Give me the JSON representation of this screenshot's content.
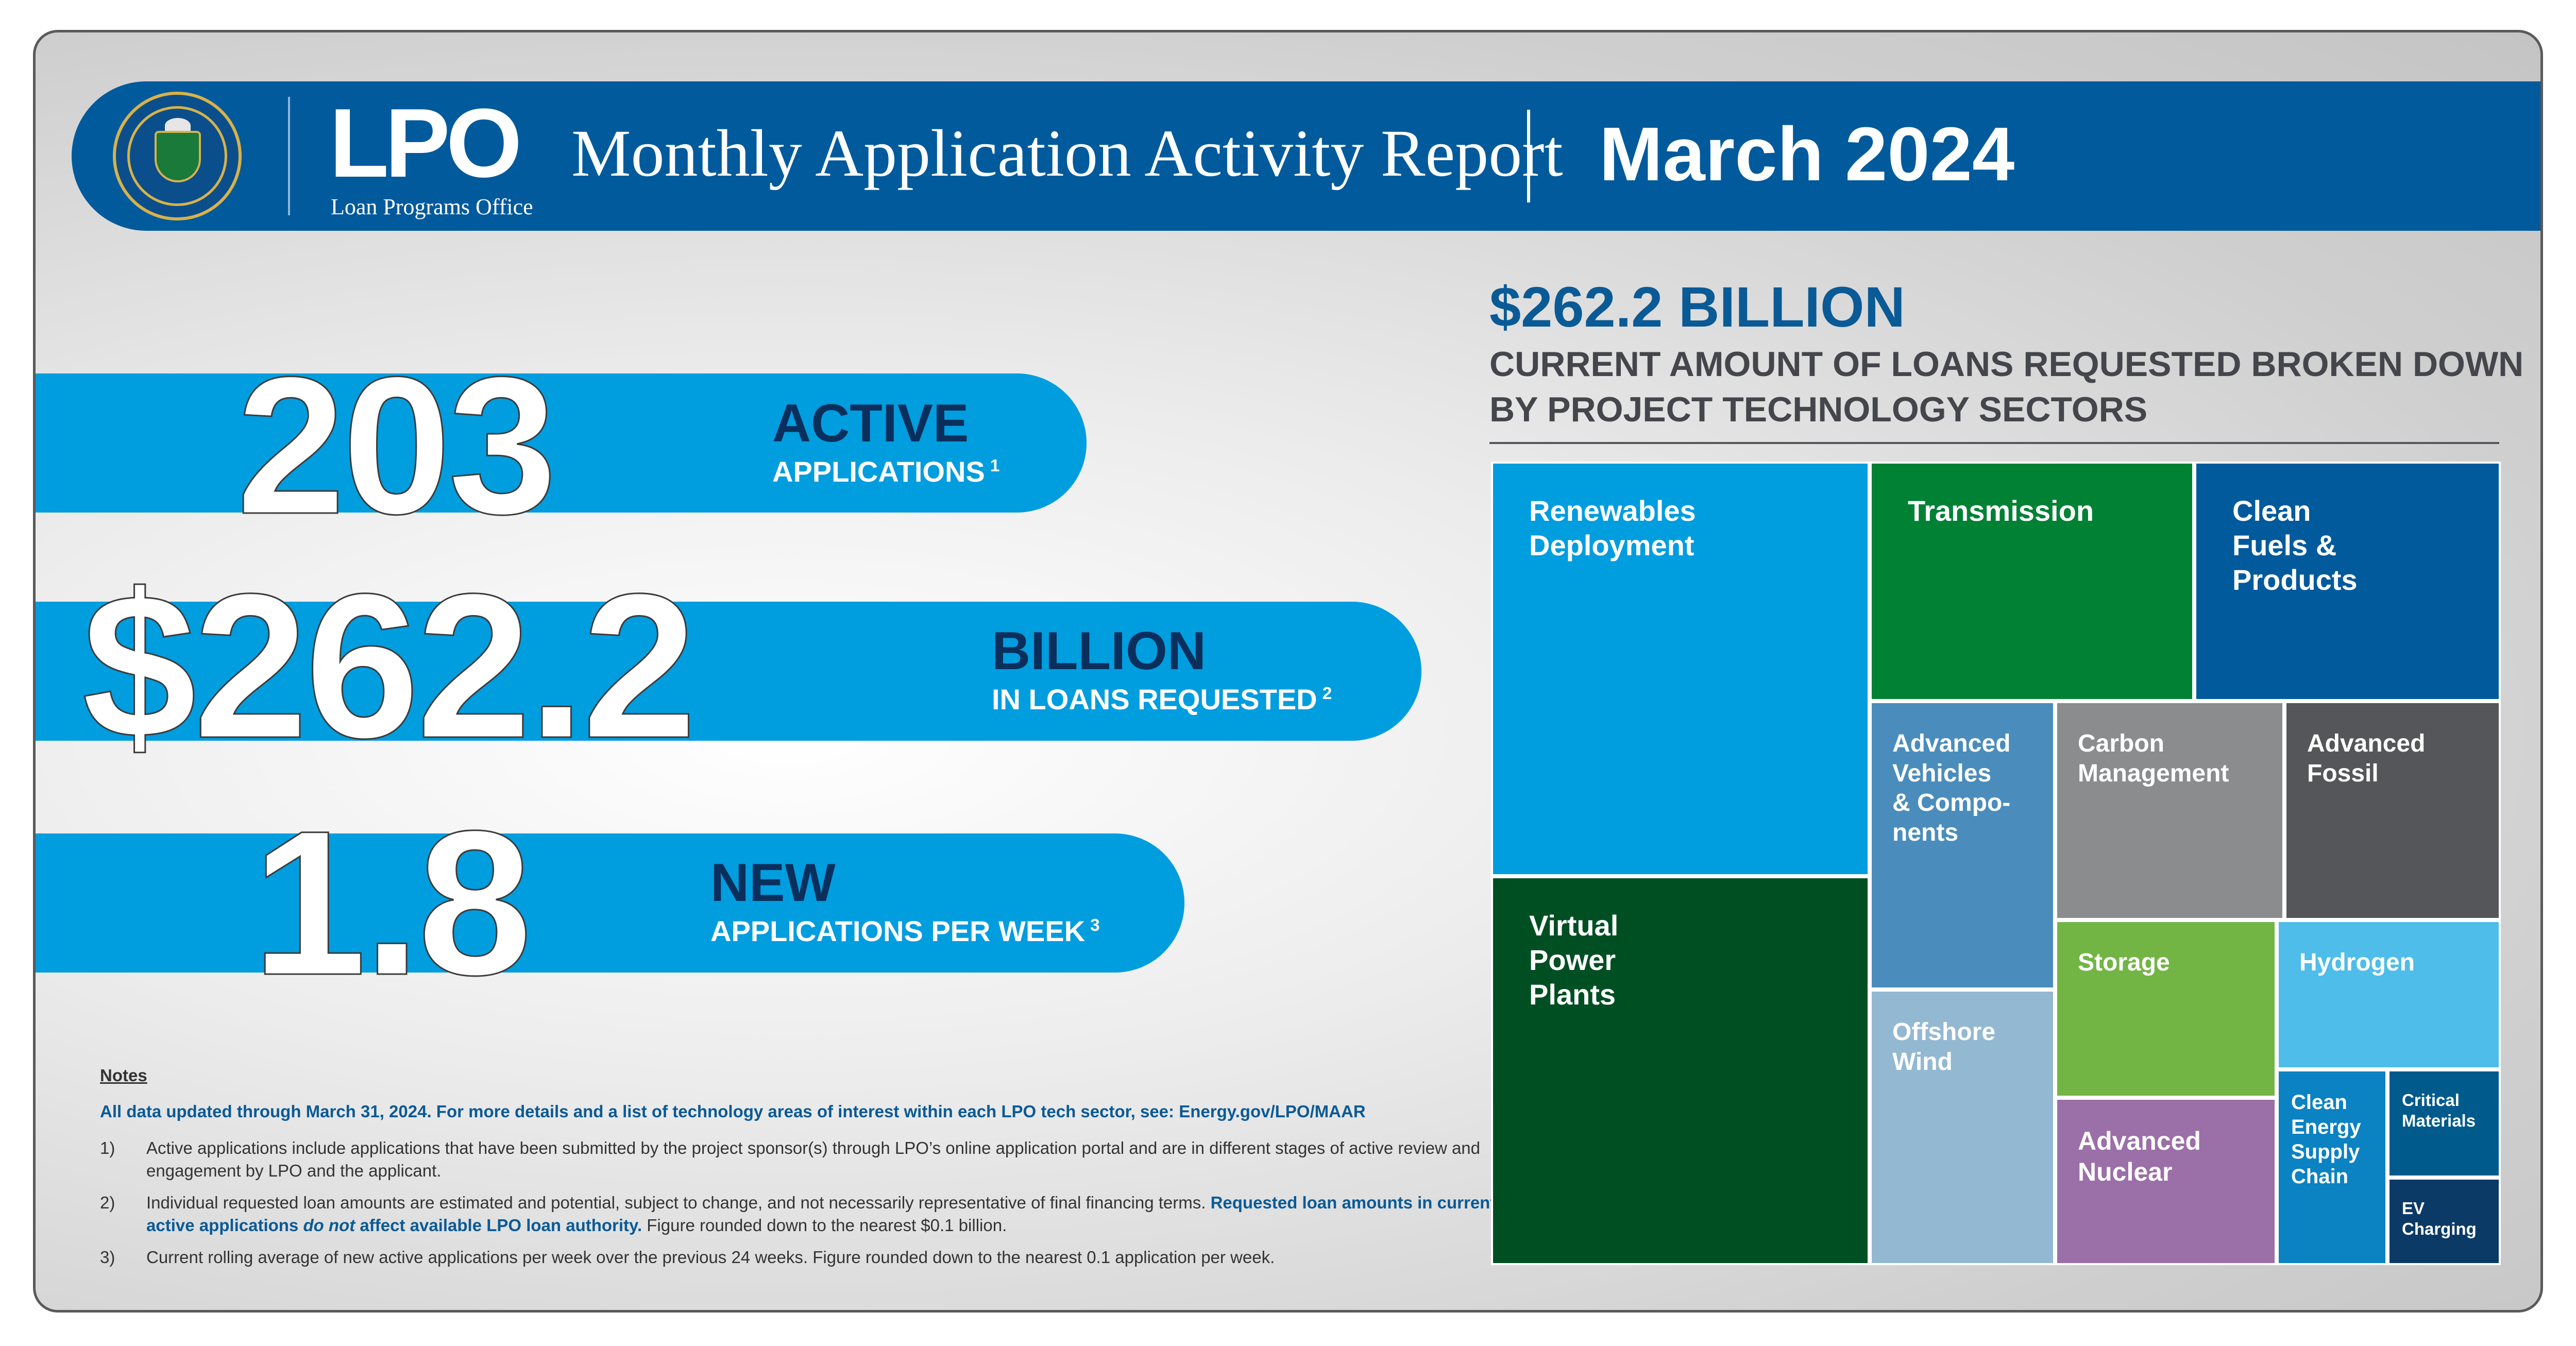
{
  "header": {
    "seal_icon": "department-of-energy-seal",
    "logo_text": "LPO",
    "logo_subtitle": "Loan Programs Office",
    "title": "Monthly Application Activity Report",
    "month": "March 2024"
  },
  "stats": [
    {
      "value": "203",
      "label": "ACTIVE",
      "sub": "APPLICATIONS",
      "note": "1"
    },
    {
      "value": "$262.2",
      "label": "BILLION",
      "sub": "IN LOANS REQUESTED",
      "note": "2"
    },
    {
      "value": "1.8",
      "label": "NEW",
      "sub": "APPLICATIONS PER WEEK",
      "note": "3"
    }
  ],
  "notes": {
    "heading": "Notes",
    "intro_bold": "All data updated through March 31, 2024.",
    "intro_rest": " For more details and a list of technology areas of interest within each LPO tech sector, see: ",
    "intro_link": "Energy.gov/LPO/MAAR",
    "items": [
      {
        "num": "1)",
        "text": "Active applications include applications that have been submitted by the project sponsor(s) through LPO’s online application portal and are in different stages of active review and engagement by LPO and the applicant."
      },
      {
        "num": "2)",
        "text_a": "Individual requested loan amounts are estimated and potential, subject to change, and not necessarily representative of final financing terms. ",
        "hl_a": "Requested loan amounts in current active applications ",
        "hl_em": "do not",
        "hl_b": " affect available LPO loan authority.",
        "text_b": " Figure rounded down to the nearest $0.1 billion."
      },
      {
        "num": "3)",
        "text": "Current rolling average of new active applications per week over the previous 24 weeks. Figure rounded down to the nearest 0.1 application per week."
      }
    ]
  },
  "chart_data": {
    "type": "treemap",
    "title": "$262.2 BILLION",
    "subtitle": "CURRENT AMOUNT OF LOANS REQUESTED BROKEN DOWN BY PROJECT TECHNOLOGY SECTORS",
    "sectors": [
      {
        "name": "Renewables\nDeployment",
        "color": "#009ddf"
      },
      {
        "name": "Virtual\nPower\nPlants",
        "color": "#004f23"
      },
      {
        "name": "Transmission",
        "color": "#008134"
      },
      {
        "name": "Clean\nFuels &\nProducts",
        "color": "#005a9c"
      },
      {
        "name": "Advanced\nVehicles\n& Compo-\nnents",
        "color": "#4a8dbc"
      },
      {
        "name": "Offshore\nWind",
        "color": "#93b8d2"
      },
      {
        "name": "Carbon\nManagement",
        "color": "#8b8c8e"
      },
      {
        "name": "Advanced\nFossil",
        "color": "#55565a"
      },
      {
        "name": "Storage",
        "color": "#72b545"
      },
      {
        "name": "Hydrogen",
        "color": "#4ebde9"
      },
      {
        "name": "Advanced\nNuclear",
        "color": "#9b6fa7"
      },
      {
        "name": "Clean\nEnergy\nSupply\nChain",
        "color": "#0b82c2"
      },
      {
        "name": "Critical\nMaterials",
        "color": "#005a8c"
      },
      {
        "name": "EV\nCharging",
        "color": "#0b3a66"
      }
    ]
  }
}
